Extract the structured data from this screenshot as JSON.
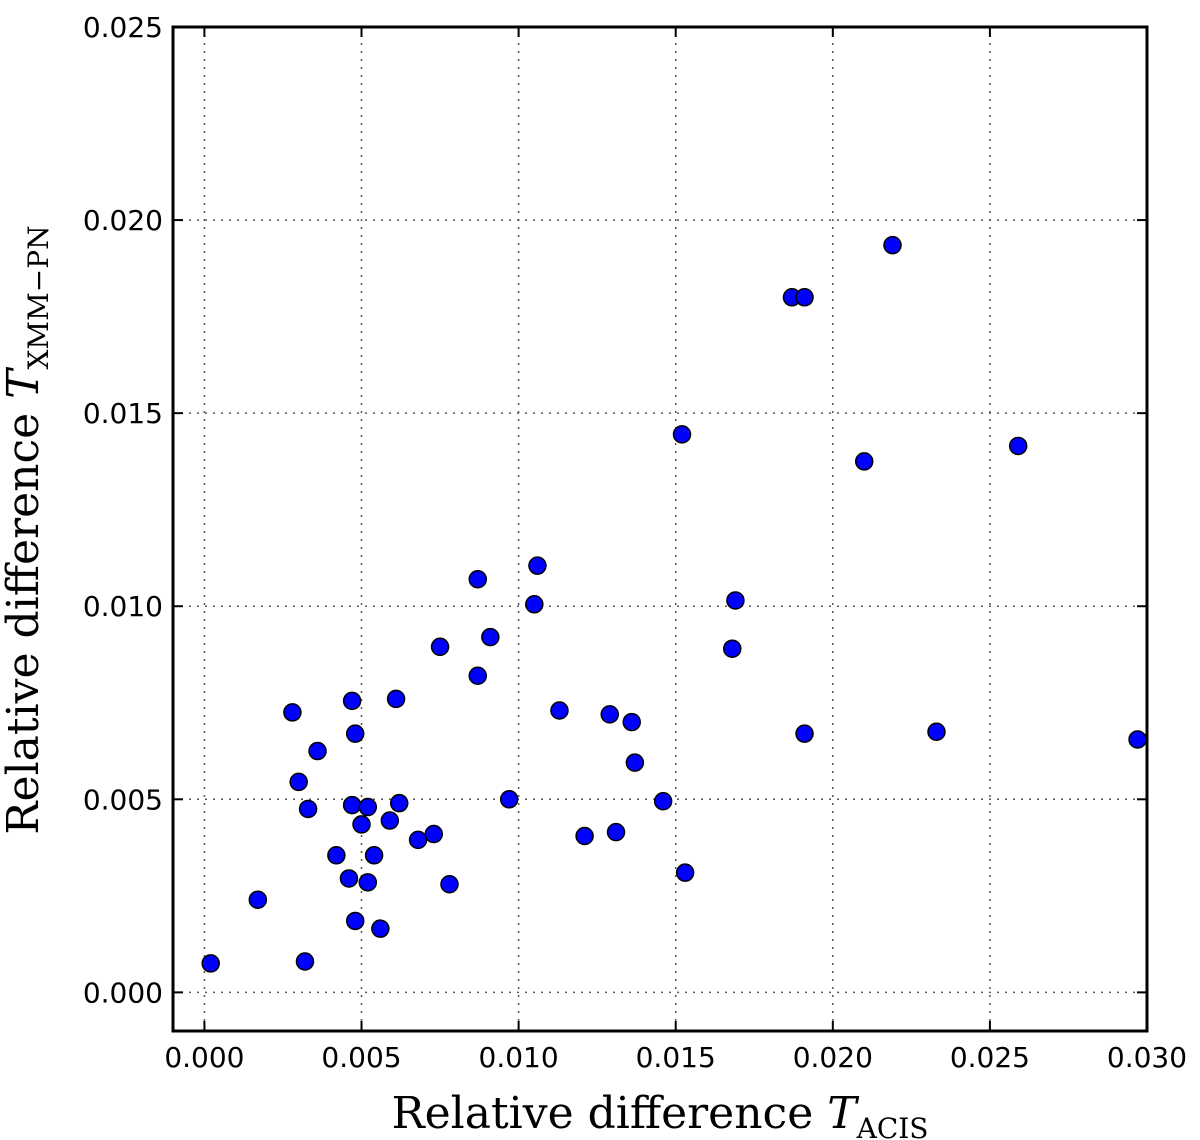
{
  "chart_data": {
    "type": "scatter",
    "title": "",
    "xlabel": {
      "prefix": "Relative difference ",
      "symbol": "T",
      "subscript": "ACIS"
    },
    "ylabel": {
      "prefix": "Relative difference ",
      "symbol": "T",
      "subscript": "XMM−PN"
    },
    "xlim": [
      -0.001,
      0.03
    ],
    "ylim": [
      -0.001,
      0.025
    ],
    "xticks": [
      "0.000",
      "0.005",
      "0.010",
      "0.015",
      "0.020",
      "0.025",
      "0.030"
    ],
    "yticks": [
      "0.000",
      "0.005",
      "0.010",
      "0.015",
      "0.020",
      "0.025"
    ],
    "grid": true,
    "marker_color": "#0000ff",
    "marker_edge_color": "#000000",
    "points": [
      [
        0.0002,
        0.00075
      ],
      [
        0.0017,
        0.0024
      ],
      [
        0.0032,
        0.0008
      ],
      [
        0.0028,
        0.00725
      ],
      [
        0.003,
        0.00545
      ],
      [
        0.0033,
        0.00475
      ],
      [
        0.0036,
        0.00625
      ],
      [
        0.0042,
        0.00355
      ],
      [
        0.0046,
        0.00295
      ],
      [
        0.0047,
        0.00485
      ],
      [
        0.0047,
        0.00755
      ],
      [
        0.0048,
        0.0067
      ],
      [
        0.0048,
        0.00185
      ],
      [
        0.005,
        0.00435
      ],
      [
        0.0052,
        0.00285
      ],
      [
        0.0052,
        0.0048
      ],
      [
        0.0054,
        0.00355
      ],
      [
        0.0056,
        0.00165
      ],
      [
        0.0059,
        0.00445
      ],
      [
        0.0061,
        0.0076
      ],
      [
        0.0062,
        0.0049
      ],
      [
        0.0068,
        0.00395
      ],
      [
        0.0073,
        0.0041
      ],
      [
        0.0075,
        0.00895
      ],
      [
        0.0078,
        0.0028
      ],
      [
        0.0087,
        0.0082
      ],
      [
        0.0087,
        0.0107
      ],
      [
        0.0091,
        0.0092
      ],
      [
        0.0097,
        0.005
      ],
      [
        0.0105,
        0.01005
      ],
      [
        0.0106,
        0.01105
      ],
      [
        0.0113,
        0.0073
      ],
      [
        0.0121,
        0.00405
      ],
      [
        0.0129,
        0.0072
      ],
      [
        0.0131,
        0.00415
      ],
      [
        0.0136,
        0.007
      ],
      [
        0.0137,
        0.00595
      ],
      [
        0.0146,
        0.00495
      ],
      [
        0.0152,
        0.01445
      ],
      [
        0.0153,
        0.0031
      ],
      [
        0.0168,
        0.0089
      ],
      [
        0.0169,
        0.01015
      ],
      [
        0.0187,
        0.018
      ],
      [
        0.0191,
        0.018
      ],
      [
        0.0191,
        0.0067
      ],
      [
        0.021,
        0.01375
      ],
      [
        0.0219,
        0.01935
      ],
      [
        0.0233,
        0.00675
      ],
      [
        0.0259,
        0.01415
      ],
      [
        0.0297,
        0.00655
      ]
    ]
  }
}
